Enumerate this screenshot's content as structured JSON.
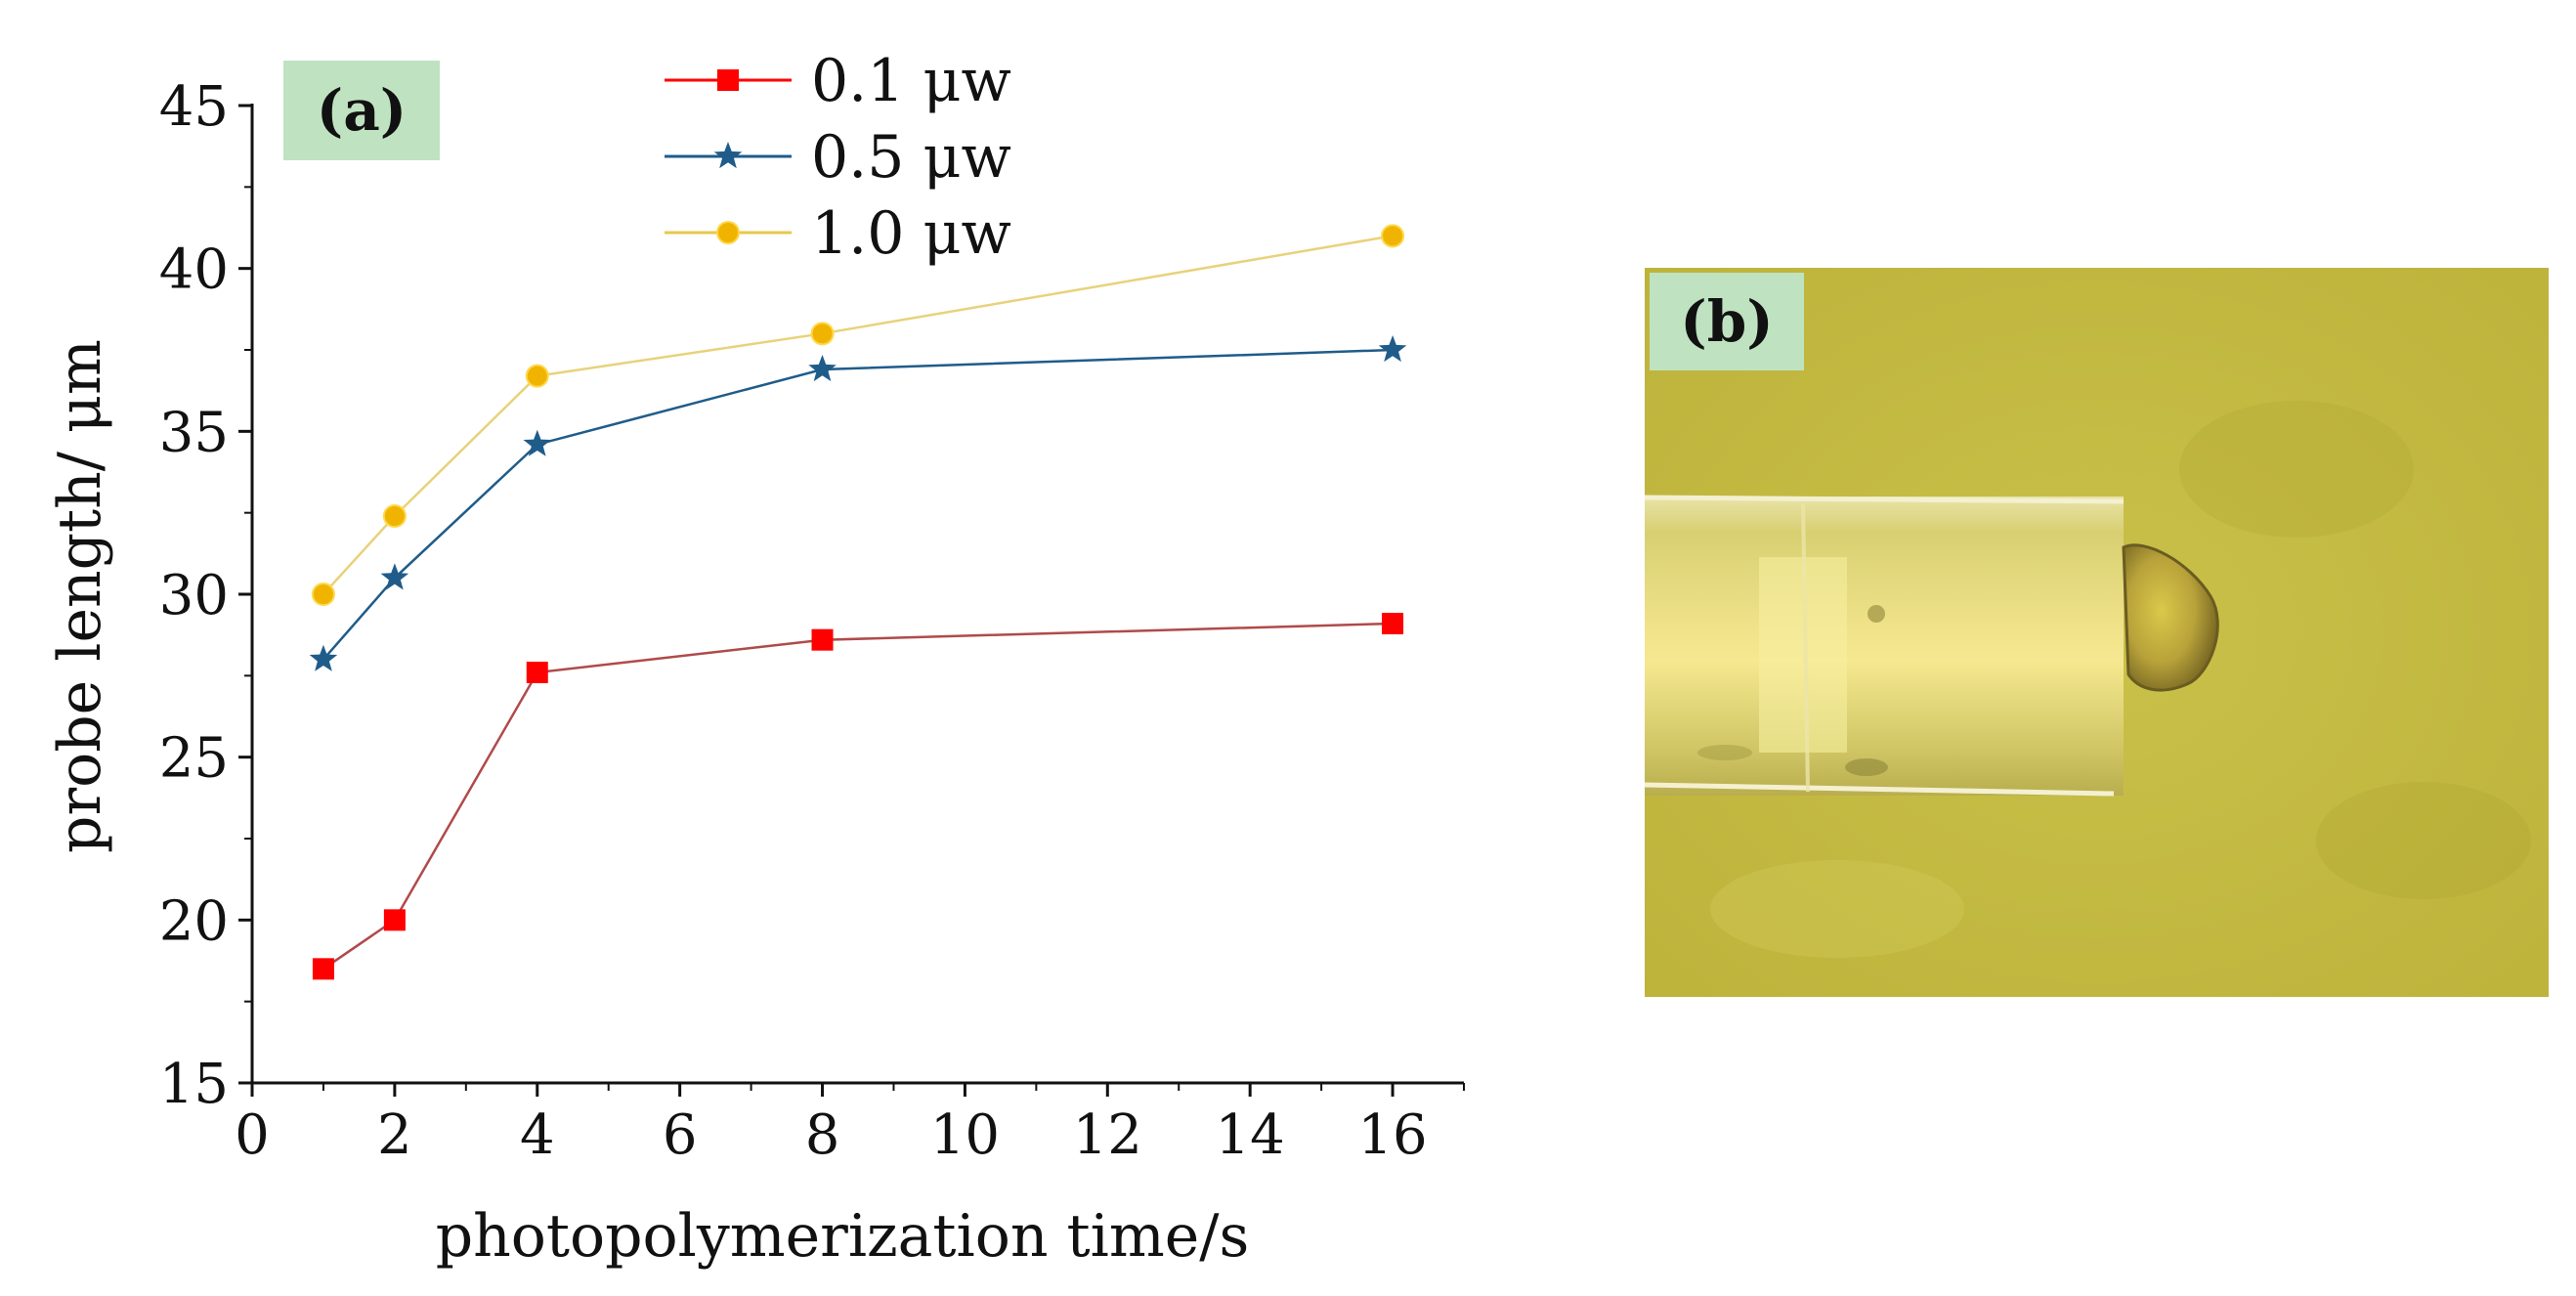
{
  "panel_a": {
    "tag": "(a)",
    "tag_color": "#bfe3c0"
  },
  "panel_b": {
    "tag": "(b)",
    "tag_color": "#bfe3c0"
  },
  "chart_data": {
    "type": "line",
    "title": "",
    "xlabel": "photopolymerization time/s",
    "ylabel": "probe length/ μm",
    "x": [
      1,
      2,
      4,
      8,
      16
    ],
    "xlim": [
      0,
      17
    ],
    "ylim": [
      15,
      45
    ],
    "xticks": [
      "0",
      "2",
      "4",
      "6",
      "8",
      "10",
      "12",
      "14",
      "16"
    ],
    "yticks": [
      "15",
      "20",
      "25",
      "30",
      "35",
      "40",
      "45"
    ],
    "grid": false,
    "legend_position": "top",
    "x_scale_note": "",
    "series": [
      {
        "name": "0.1 μw",
        "color": "#ff0000",
        "line_color": "#b04a4a",
        "marker": "square",
        "values": [
          18.5,
          20.0,
          27.6,
          28.6,
          29.1
        ]
      },
      {
        "name": "0.5 μw",
        "color": "#1f5c8a",
        "line_color": "#1f5c8a",
        "marker": "star",
        "values": [
          28.0,
          30.5,
          34.6,
          36.9,
          37.5
        ]
      },
      {
        "name": "1.0 μw",
        "color": "#f0b400",
        "line_color": "#e8d27a",
        "marker": "circle",
        "values": [
          30.0,
          32.4,
          36.7,
          38.0,
          41.0
        ]
      }
    ]
  }
}
